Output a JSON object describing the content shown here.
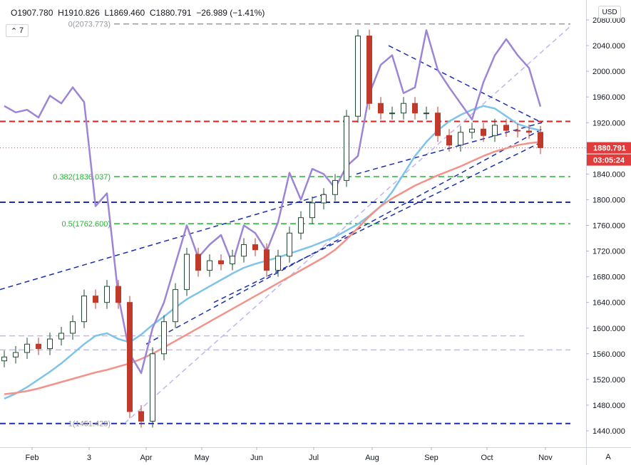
{
  "header": {
    "open": "O1907.780",
    "high": "H1910.826",
    "low": "L1869.460",
    "close": "C1880.791",
    "change": "−26.989 (−1.41%)"
  },
  "indicator_count": "7",
  "currency": "USD",
  "auto_button": "A",
  "colors": {
    "up": "#1e4d30",
    "down": "#c0392b",
    "sma_blue": "#7ec3ea",
    "sma_red": "#f2938a",
    "purple": "#9d85d6",
    "trend_blue": "#1a2fb0",
    "fib_green": "#22b532",
    "red_level": "#e01f1f",
    "price_tag": "#e23b3b"
  },
  "chart_data": {
    "type": "line",
    "price_scale": {
      "min": 1430,
      "max": 2095,
      "ticks": [
        2080,
        2040,
        2000,
        1960,
        1920,
        1880,
        1840,
        1800,
        1760,
        1720,
        1680,
        1640,
        1600,
        1560,
        1520,
        1480,
        1440
      ]
    },
    "x_ticks": [
      "Feb",
      "3",
      "Apr",
      "May",
      "Jun",
      "Jul",
      "Aug",
      "Sep",
      "Oct",
      "Nov"
    ],
    "last_price": "1880.791",
    "countdown": "03:05:24",
    "fib_labels": [
      {
        "label": "0(2073.773)",
        "value": 2073.773
      },
      {
        "label": "0.382(1836.037)",
        "value": 1836.037
      },
      {
        "label": "0.5(1762.600)",
        "value": 1762.6
      },
      {
        "label": "1(1451.428)",
        "value": 1451.428
      }
    ],
    "horizontal_levels": [
      {
        "name": "red-level",
        "value": 1922
      },
      {
        "name": "blue-level",
        "value": 1796
      },
      {
        "name": "lavender-upper",
        "value": 1588
      },
      {
        "name": "lavender-lower",
        "value": 1566
      }
    ],
    "series": [
      {
        "name": "sma-blue",
        "values": [
          1490,
          1498,
          1508,
          1520,
          1532,
          1545,
          1560,
          1575,
          1588,
          1592,
          1583,
          1578,
          1590,
          1605,
          1618,
          1632,
          1645,
          1655,
          1665,
          1675,
          1685,
          1694,
          1700,
          1705,
          1710,
          1716,
          1722,
          1728,
          1735,
          1742,
          1752,
          1762,
          1775,
          1790,
          1812,
          1840,
          1868,
          1890,
          1908,
          1922,
          1932,
          1940,
          1946,
          1942,
          1930,
          1918,
          1912,
          1908
        ]
      },
      {
        "name": "sma-red",
        "values": [
          1497,
          1499,
          1502,
          1506,
          1511,
          1516,
          1521,
          1526,
          1531,
          1535,
          1540,
          1545,
          1552,
          1560,
          1570,
          1580,
          1590,
          1600,
          1610,
          1620,
          1630,
          1640,
          1650,
          1660,
          1670,
          1680,
          1690,
          1700,
          1710,
          1722,
          1738,
          1756,
          1774,
          1790,
          1802,
          1812,
          1822,
          1830,
          1838,
          1845,
          1852,
          1860,
          1868,
          1875,
          1880,
          1885,
          1888,
          1890
        ]
      },
      {
        "name": "purple-overlay",
        "values": [
          1946,
          1936,
          1940,
          1928,
          1962,
          1950,
          1975,
          1952,
          1790,
          1810,
          1650,
          1560,
          1530,
          1600,
          1640,
          1700,
          1760,
          1710,
          1730,
          1745,
          1700,
          1760,
          1748,
          1720,
          1765,
          1842,
          1800,
          1848,
          1840,
          1818,
          1852,
          1868,
          1965,
          2010,
          2025,
          1966,
          1975,
          2064,
          2002,
          1975,
          1950,
          1925,
          1983,
          2025,
          2050,
          2025,
          2005,
          1945
        ]
      },
      {
        "name": "close",
        "values": [
          1555,
          1562,
          1575,
          1568,
          1583,
          1592,
          1610,
          1650,
          1640,
          1665,
          1640,
          1470,
          1455,
          1560,
          1610,
          1660,
          1715,
          1690,
          1705,
          1700,
          1712,
          1730,
          1722,
          1690,
          1712,
          1748,
          1772,
          1795,
          1808,
          1830,
          1930,
          2055,
          1950,
          1935,
          1935,
          1950,
          1935,
          1935,
          1900,
          1885,
          1905,
          1910,
          1900,
          1916,
          1908,
          1907,
          1905,
          1881
        ]
      }
    ]
  }
}
